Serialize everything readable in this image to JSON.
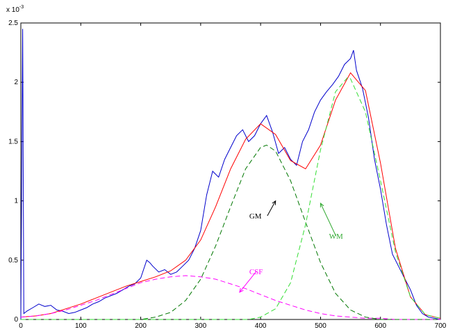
{
  "chart_data": {
    "type": "line",
    "title": "",
    "xlabel": "",
    "ylabel": "",
    "y_exponent": "x 10",
    "y_exponent_power": "-3",
    "xlim": [
      0,
      700
    ],
    "ylim": [
      0,
      2.5
    ],
    "x_ticks": [
      0,
      100,
      200,
      300,
      400,
      500,
      600,
      700
    ],
    "y_ticks": [
      0,
      0.5,
      1,
      1.5,
      2,
      2.5
    ],
    "x_tick_labels": [
      "0",
      "100",
      "200",
      "300",
      "400",
      "500",
      "600",
      "700"
    ],
    "y_tick_labels": [
      "0",
      "0.5",
      "1",
      "1.5",
      "2",
      "2.5"
    ],
    "grid": false,
    "series": [
      {
        "name": "",
        "style": "noisy-histogram",
        "color": "#0000cc",
        "x": [
          0,
          3,
          5,
          10,
          20,
          30,
          40,
          50,
          60,
          70,
          80,
          90,
          100,
          110,
          120,
          130,
          140,
          150,
          160,
          170,
          180,
          190,
          200,
          210,
          215,
          220,
          230,
          240,
          250,
          260,
          270,
          280,
          290,
          300,
          310,
          320,
          330,
          340,
          350,
          360,
          370,
          380,
          390,
          400,
          410,
          420,
          430,
          440,
          450,
          460,
          470,
          480,
          490,
          500,
          510,
          520,
          530,
          540,
          550,
          555,
          560,
          570,
          580,
          590,
          600,
          610,
          620,
          630,
          640,
          650,
          660,
          670,
          680,
          690,
          700
        ],
        "y": [
          0,
          2.45,
          0.05,
          0.07,
          0.1,
          0.13,
          0.11,
          0.12,
          0.08,
          0.07,
          0.05,
          0.06,
          0.08,
          0.1,
          0.13,
          0.15,
          0.18,
          0.2,
          0.22,
          0.25,
          0.28,
          0.3,
          0.35,
          0.5,
          0.48,
          0.45,
          0.4,
          0.42,
          0.38,
          0.4,
          0.45,
          0.5,
          0.6,
          0.75,
          1.05,
          1.25,
          1.2,
          1.35,
          1.45,
          1.55,
          1.6,
          1.5,
          1.55,
          1.65,
          1.72,
          1.58,
          1.4,
          1.45,
          1.35,
          1.3,
          1.5,
          1.6,
          1.75,
          1.85,
          1.92,
          1.98,
          2.05,
          2.15,
          2.2,
          2.27,
          2.1,
          1.95,
          1.7,
          1.35,
          1.1,
          0.8,
          0.55,
          0.45,
          0.35,
          0.25,
          0.12,
          0.05,
          0.02,
          0.01,
          0
        ]
      },
      {
        "name": "",
        "style": "fit",
        "color": "#ff0000",
        "x": [
          0,
          25,
          50,
          75,
          100,
          125,
          150,
          175,
          200,
          225,
          250,
          275,
          300,
          325,
          350,
          375,
          400,
          425,
          450,
          475,
          500,
          525,
          550,
          575,
          600,
          625,
          650,
          675,
          700
        ],
        "y": [
          0.02,
          0.03,
          0.05,
          0.09,
          0.13,
          0.18,
          0.23,
          0.28,
          0.32,
          0.36,
          0.41,
          0.5,
          0.67,
          0.95,
          1.27,
          1.52,
          1.65,
          1.56,
          1.34,
          1.27,
          1.47,
          1.85,
          2.08,
          1.93,
          1.32,
          0.6,
          0.19,
          0.04,
          0.01
        ]
      },
      {
        "name": "CSF",
        "style": "dashed",
        "color": "#ff00ff",
        "x": [
          0,
          25,
          50,
          75,
          100,
          125,
          150,
          175,
          200,
          225,
          250,
          275,
          300,
          325,
          350,
          375,
          400,
          425,
          450,
          475,
          500,
          525,
          550,
          575,
          600,
          625,
          650,
          675,
          700
        ],
        "y": [
          0.02,
          0.03,
          0.05,
          0.08,
          0.12,
          0.16,
          0.21,
          0.26,
          0.31,
          0.34,
          0.36,
          0.37,
          0.36,
          0.34,
          0.3,
          0.26,
          0.21,
          0.16,
          0.12,
          0.08,
          0.05,
          0.03,
          0.02,
          0.01,
          0.01,
          0.0,
          0.0,
          0.0,
          0.0
        ]
      },
      {
        "name": "GM",
        "style": "dashed",
        "color": "#007700",
        "x": [
          0,
          200,
          225,
          250,
          275,
          300,
          325,
          350,
          375,
          400,
          410,
          425,
          450,
          475,
          500,
          525,
          550,
          575,
          600,
          700
        ],
        "y": [
          0.0,
          0.0,
          0.02,
          0.06,
          0.16,
          0.34,
          0.62,
          0.95,
          1.27,
          1.45,
          1.47,
          1.42,
          1.17,
          0.82,
          0.48,
          0.22,
          0.08,
          0.02,
          0.0,
          0.0
        ]
      },
      {
        "name": "WM",
        "style": "dashed",
        "color": "#33dd33",
        "x": [
          0,
          380,
          400,
          425,
          450,
          475,
          500,
          525,
          545,
          550,
          575,
          600,
          625,
          650,
          675,
          700
        ],
        "y": [
          0.0,
          0.0,
          0.02,
          0.09,
          0.31,
          0.8,
          1.43,
          1.92,
          2.04,
          2.03,
          1.75,
          1.17,
          0.57,
          0.19,
          0.04,
          0.01
        ]
      }
    ],
    "annotations": [
      {
        "text": "GM",
        "color": "#000000",
        "x": 395,
        "y": 0.85,
        "arrow_to": [
          425,
          1.0
        ]
      },
      {
        "text": "WM",
        "color": "#33aa33",
        "x": 528,
        "y": 0.68,
        "arrow_to": [
          500,
          0.98
        ]
      },
      {
        "text": "CSF",
        "color": "#ff00ff",
        "x": 395,
        "y": 0.38,
        "arrow_to": [
          365,
          0.23
        ]
      }
    ]
  }
}
